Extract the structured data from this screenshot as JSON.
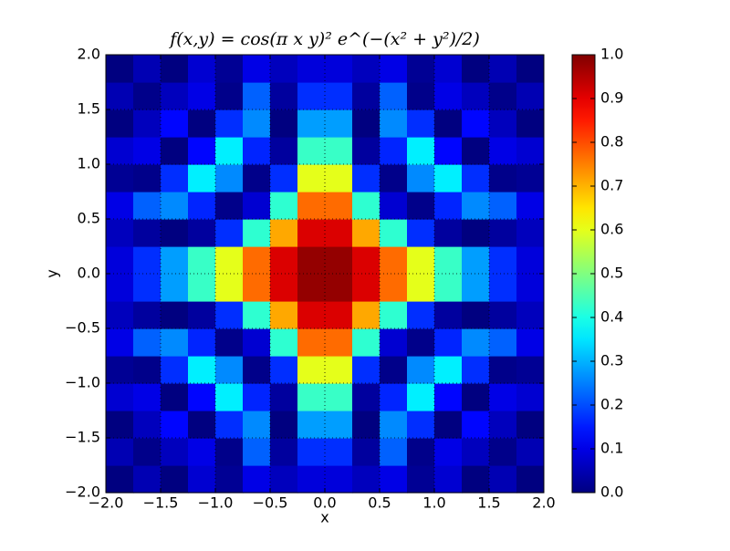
{
  "chart_data": {
    "type": "heatmap",
    "title": "f(x,y) = cos(π x y)² e^(−(x² + y²)/2)",
    "xlabel": "x",
    "ylabel": "y",
    "x": [
      -1.875,
      -1.625,
      -1.375,
      -1.125,
      -0.875,
      -0.625,
      -0.375,
      -0.125,
      0.125,
      0.375,
      0.625,
      0.875,
      1.125,
      1.375,
      1.625,
      1.875
    ],
    "y": [
      -1.875,
      -1.625,
      -1.375,
      -1.125,
      -0.875,
      -0.625,
      -0.375,
      -0.125,
      0.125,
      0.375,
      0.625,
      0.875,
      1.125,
      1.375,
      1.625,
      1.875
    ],
    "z": [
      [
        0,
        0.05,
        0,
        0.08,
        0.02,
        0.1,
        0.06,
        0.09,
        0.09,
        0.06,
        0.1,
        0.02,
        0.08,
        0,
        0.05,
        0
      ],
      [
        0.05,
        0.01,
        0.06,
        0.1,
        0.01,
        0.22,
        0.03,
        0.17,
        0.17,
        0.03,
        0.22,
        0.01,
        0.1,
        0.06,
        0.01,
        0.05
      ],
      [
        0,
        0.06,
        0.13,
        0,
        0.17,
        0.26,
        0,
        0.28,
        0.28,
        0,
        0.26,
        0.17,
        0,
        0.13,
        0.06,
        0
      ],
      [
        0.08,
        0.1,
        0,
        0.13,
        0.36,
        0.16,
        0.03,
        0.43,
        0.43,
        0.03,
        0.16,
        0.36,
        0.13,
        0,
        0.1,
        0.08
      ],
      [
        0.02,
        0.01,
        0.17,
        0.36,
        0.26,
        0.01,
        0.17,
        0.6,
        0.6,
        0.17,
        0.01,
        0.26,
        0.36,
        0.17,
        0.01,
        0.02
      ],
      [
        0.1,
        0.22,
        0.26,
        0.16,
        0.01,
        0.08,
        0.42,
        0.77,
        0.77,
        0.42,
        0.08,
        0.01,
        0.16,
        0.26,
        0.22,
        0.1
      ],
      [
        0.06,
        0.03,
        0,
        0.03,
        0.17,
        0.42,
        0.71,
        0.91,
        0.91,
        0.71,
        0.42,
        0.17,
        0.03,
        0,
        0.03,
        0.06
      ],
      [
        0.09,
        0.17,
        0.28,
        0.43,
        0.6,
        0.77,
        0.91,
        0.98,
        0.98,
        0.91,
        0.77,
        0.6,
        0.43,
        0.28,
        0.17,
        0.09
      ],
      [
        0.09,
        0.17,
        0.28,
        0.43,
        0.6,
        0.77,
        0.91,
        0.98,
        0.98,
        0.91,
        0.77,
        0.6,
        0.43,
        0.28,
        0.17,
        0.09
      ],
      [
        0.06,
        0.03,
        0,
        0.03,
        0.17,
        0.42,
        0.71,
        0.91,
        0.91,
        0.71,
        0.42,
        0.17,
        0.03,
        0,
        0.03,
        0.06
      ],
      [
        0.1,
        0.22,
        0.26,
        0.16,
        0.01,
        0.08,
        0.42,
        0.77,
        0.77,
        0.42,
        0.08,
        0.01,
        0.16,
        0.26,
        0.22,
        0.1
      ],
      [
        0.02,
        0.01,
        0.17,
        0.36,
        0.26,
        0.01,
        0.17,
        0.6,
        0.6,
        0.17,
        0.01,
        0.26,
        0.36,
        0.17,
        0.01,
        0.02
      ],
      [
        0.08,
        0.1,
        0,
        0.13,
        0.36,
        0.16,
        0.03,
        0.43,
        0.43,
        0.03,
        0.16,
        0.36,
        0.13,
        0,
        0.1,
        0.08
      ],
      [
        0,
        0.06,
        0.13,
        0,
        0.17,
        0.26,
        0,
        0.28,
        0.28,
        0,
        0.26,
        0.17,
        0,
        0.13,
        0.06,
        0
      ],
      [
        0.05,
        0.01,
        0.06,
        0.1,
        0.01,
        0.22,
        0.03,
        0.17,
        0.17,
        0.03,
        0.22,
        0.01,
        0.1,
        0.06,
        0.01,
        0.05
      ],
      [
        0,
        0.05,
        0,
        0.08,
        0.02,
        0.1,
        0.06,
        0.09,
        0.09,
        0.06,
        0.1,
        0.02,
        0.08,
        0,
        0.05,
        0
      ]
    ],
    "colormap": "jet",
    "xlim": [
      -2,
      2
    ],
    "ylim": [
      -2,
      2
    ],
    "xticks": [
      {
        "value": -2,
        "label": "−2.0"
      },
      {
        "value": -1.5,
        "label": "−1.5"
      },
      {
        "value": -1,
        "label": "−1.0"
      },
      {
        "value": -0.5,
        "label": "−0.5"
      },
      {
        "value": 0,
        "label": "0.0"
      },
      0.5,
      {
        "value": 1,
        "label": "1.0"
      },
      1.5,
      {
        "value": 2,
        "label": "2.0"
      }
    ],
    "yticks": [
      {
        "value": -2,
        "label": "−2.0"
      },
      {
        "value": -1.5,
        "label": "−1.5"
      },
      {
        "value": -1,
        "label": "−1.0"
      },
      {
        "value": -0.5,
        "label": "−0.5"
      },
      {
        "value": 0,
        "label": "0.0"
      },
      0.5,
      {
        "value": 1,
        "label": "1.0"
      },
      1.5,
      {
        "value": 2,
        "label": "2.0"
      }
    ],
    "clim": [
      0,
      1
    ],
    "cticks": [
      {
        "value": 0,
        "label": "0.0"
      },
      0.1,
      0.2,
      0.3,
      0.4,
      0.5,
      0.6,
      0.7,
      0.8,
      0.9,
      {
        "value": 1,
        "label": "1.0"
      }
    ],
    "grid": true
  }
}
